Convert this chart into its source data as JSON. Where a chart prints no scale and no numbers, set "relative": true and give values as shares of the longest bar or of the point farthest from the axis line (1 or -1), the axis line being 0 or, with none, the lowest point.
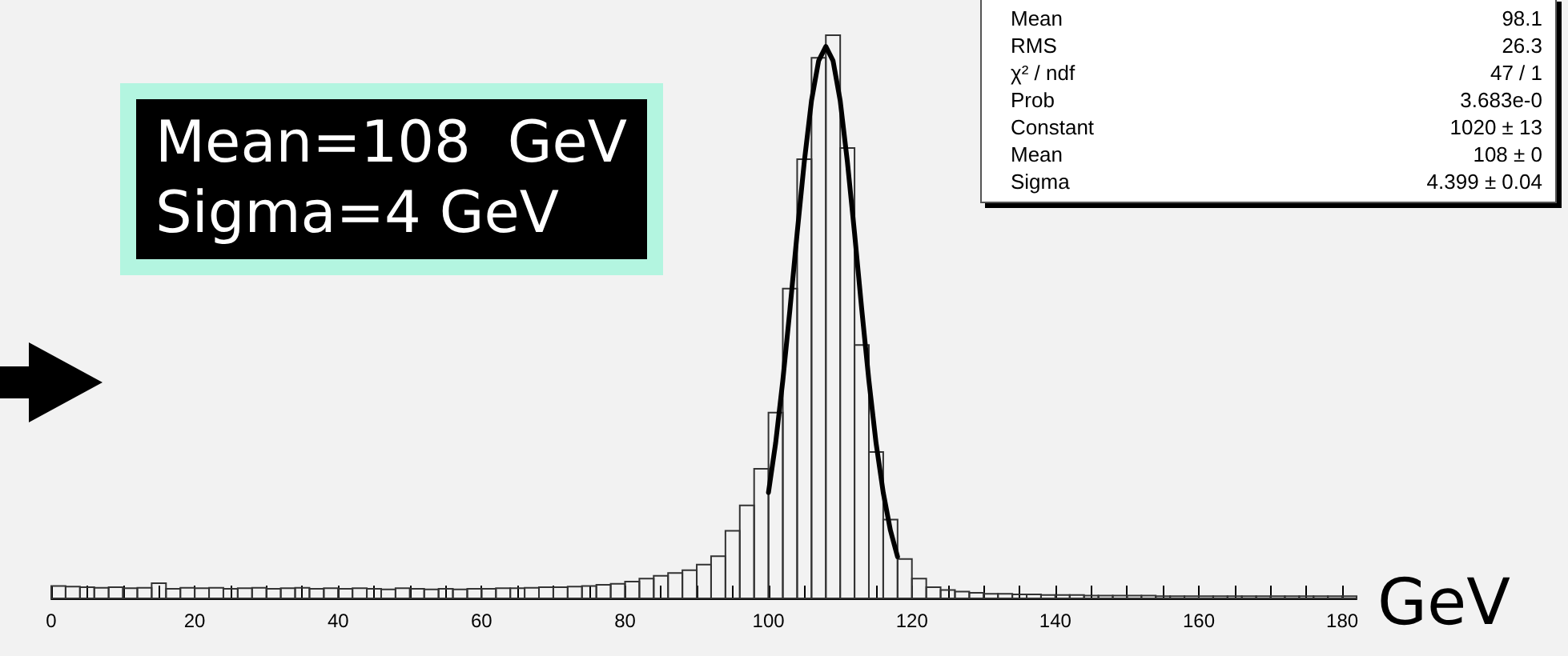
{
  "chart_data": {
    "type": "histogram",
    "relative": true,
    "xlabel": "GeV",
    "xlim": [
      0,
      182
    ],
    "xticks": [
      0,
      20,
      40,
      60,
      80,
      100,
      120,
      140,
      160,
      180
    ],
    "grid": false,
    "bins": [
      0,
      2,
      4,
      6,
      8,
      10,
      12,
      14,
      16,
      18,
      20,
      22,
      24,
      26,
      28,
      30,
      32,
      34,
      36,
      38,
      40,
      42,
      44,
      46,
      48,
      50,
      52,
      54,
      56,
      58,
      60,
      62,
      64,
      66,
      68,
      70,
      72,
      74,
      76,
      78,
      80,
      82,
      84,
      86,
      88,
      90,
      92,
      94,
      96,
      98,
      100,
      102,
      104,
      106,
      108,
      110,
      112,
      114,
      116,
      118,
      120,
      122,
      124,
      126,
      128,
      130,
      132,
      134,
      136,
      138,
      140,
      142,
      144,
      146,
      148,
      150,
      152,
      154,
      156,
      158,
      160,
      162,
      164,
      166,
      168,
      170,
      172,
      174,
      176,
      178,
      180,
      182
    ],
    "color": "#333333",
    "values": [
      0.022,
      0.021,
      0.02,
      0.019,
      0.02,
      0.018,
      0.019,
      0.027,
      0.017,
      0.019,
      0.018,
      0.019,
      0.017,
      0.018,
      0.019,
      0.017,
      0.018,
      0.019,
      0.017,
      0.018,
      0.017,
      0.018,
      0.017,
      0.016,
      0.018,
      0.017,
      0.016,
      0.017,
      0.016,
      0.017,
      0.017,
      0.018,
      0.018,
      0.019,
      0.02,
      0.02,
      0.021,
      0.022,
      0.024,
      0.026,
      0.03,
      0.035,
      0.04,
      0.045,
      0.05,
      0.06,
      0.075,
      0.12,
      0.165,
      0.23,
      0.33,
      0.55,
      0.78,
      0.96,
      1,
      0.8,
      0.45,
      0.26,
      0.14,
      0.07,
      0.035,
      0.02,
      0.015,
      0.012,
      0.01,
      0.008,
      0.008,
      0.007,
      0.007,
      0.006,
      0.006,
      0.006,
      0.005,
      0.005,
      0.005,
      0.005,
      0.005,
      0.004,
      0.004,
      0.004,
      0.004,
      0.004,
      0.004,
      0.004,
      0.004,
      0.004,
      0.004,
      0.004,
      0.004,
      0.004,
      0.004
    ],
    "series": [
      {
        "type": "line",
        "color": "#000000",
        "marker": "none",
        "x": [
          100,
          101,
          102,
          103,
          104,
          105,
          106,
          107,
          108,
          109,
          110,
          111,
          112,
          113,
          114,
          115,
          116,
          117,
          118
        ],
        "values": [
          0.188,
          0.276,
          0.387,
          0.514,
          0.649,
          0.776,
          0.884,
          0.955,
          0.98,
          0.955,
          0.884,
          0.776,
          0.649,
          0.514,
          0.387,
          0.276,
          0.188,
          0.121,
          0.074
        ]
      }
    ],
    "annotations": [
      "Mean=108  GeV\nSigma=4 GeV",
      "Mean",
      "98.1",
      "RMS",
      "26.3",
      "χ² / ndf",
      "47 / 1",
      "Prob",
      "3.683e-0",
      "Constant",
      "1020 ± 13",
      "Mean",
      "108 ± 0",
      "Sigma",
      "4.399 ± 0.04"
    ]
  }
}
